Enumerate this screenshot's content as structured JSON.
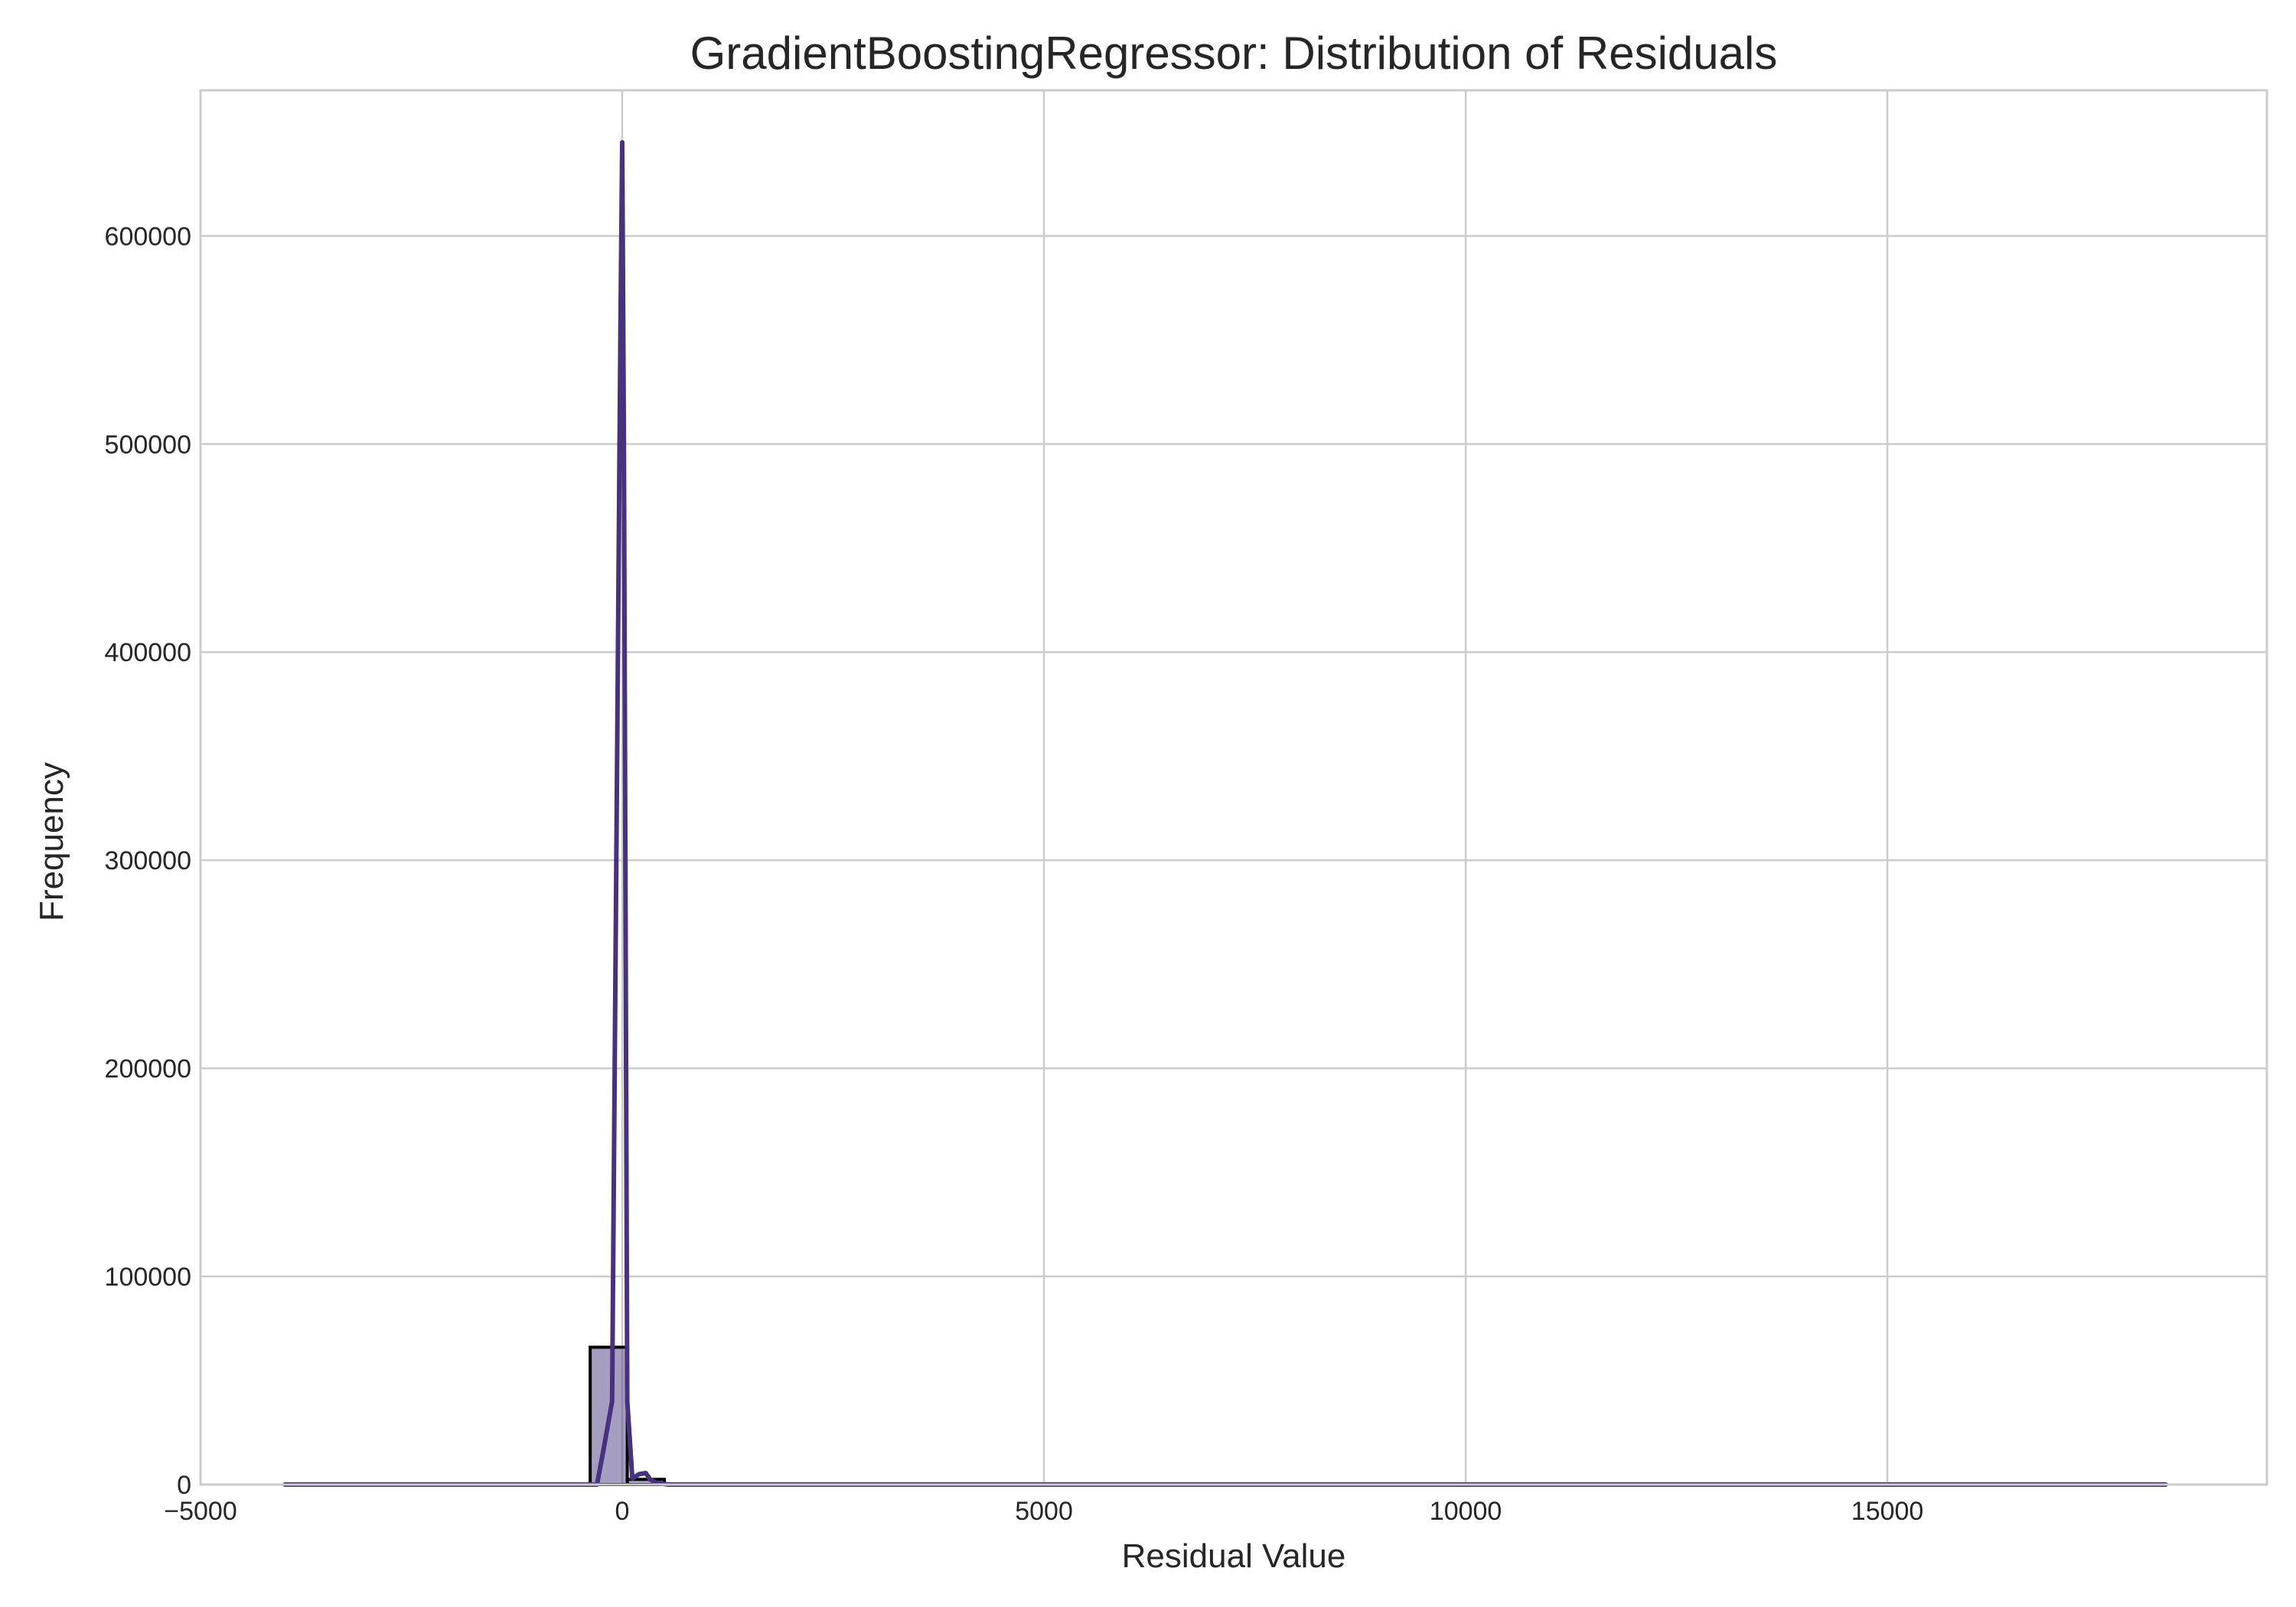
{
  "chart_data": {
    "type": "histogram",
    "title": "GradientBoostingRegressor: Distribution of Residuals",
    "xlabel": "Residual Value",
    "ylabel": "Frequency",
    "xlim": [
      -5000,
      19500
    ],
    "ylim": [
      0,
      670000
    ],
    "x_ticks": [
      -5000,
      0,
      5000,
      10000,
      15000
    ],
    "x_tick_labels": [
      "−5000",
      "0",
      "5000",
      "10000",
      "15000"
    ],
    "y_ticks": [
      0,
      100000,
      200000,
      300000,
      400000,
      500000,
      600000
    ],
    "y_tick_labels": [
      "0",
      "100000",
      "200000",
      "300000",
      "400000",
      "500000",
      "600000"
    ],
    "grid": true,
    "bar_color": "#4b3d82",
    "bar_opacity": 0.5,
    "kde_color": "#46327e",
    "bars": [
      {
        "x0": -380,
        "x1": 60,
        "count": 66000
      },
      {
        "x0": 60,
        "x1": 500,
        "count": 2500
      }
    ],
    "kde": {
      "x": [
        -4000,
        -300,
        -230,
        -120,
        -20,
        0,
        20,
        60,
        120,
        200,
        280,
        330,
        400,
        550,
        18300
      ],
      "y": [
        0,
        0,
        15000,
        40000,
        560000,
        645000,
        500000,
        40000,
        3000,
        5000,
        5500,
        2500,
        800,
        0,
        0
      ]
    }
  }
}
